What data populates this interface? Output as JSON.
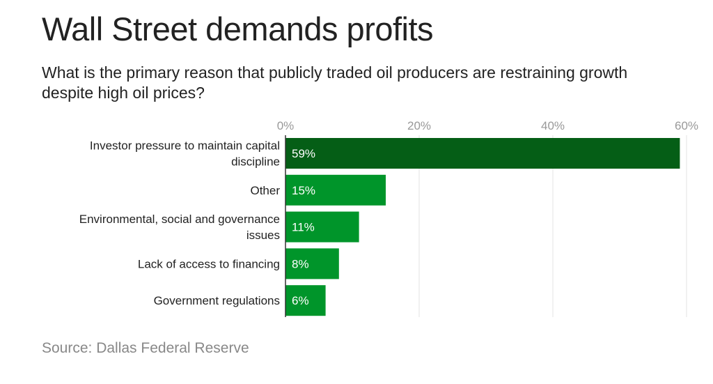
{
  "chart_data": {
    "type": "bar",
    "orientation": "horizontal",
    "title": "Wall Street demands profits",
    "subtitle": "What is the primary reason that publicly traded oil producers are restraining growth despite high oil prices?",
    "source": "Source: Dallas Federal Reserve",
    "categories": [
      [
        "Investor pressure to maintain capital",
        "discipline"
      ],
      [
        "Other"
      ],
      [
        "Environmental, social and governance",
        "issues"
      ],
      [
        "Lack of access to financing"
      ],
      [
        "Government regulations"
      ]
    ],
    "values": [
      59,
      15,
      11,
      8,
      6
    ],
    "data_labels": [
      "59%",
      "15%",
      "11%",
      "8%",
      "6%"
    ],
    "xlim": [
      0,
      60
    ],
    "x_ticks": [
      0,
      20,
      40,
      60
    ],
    "x_tick_labels": [
      "0%",
      "20%",
      "40%",
      "60%"
    ],
    "x_axis_position": "top",
    "grid": true,
    "colors": {
      "highlight": "#055e16",
      "bar": "#00952a",
      "grid": "#e3e3e3",
      "axis": "#333333"
    }
  }
}
